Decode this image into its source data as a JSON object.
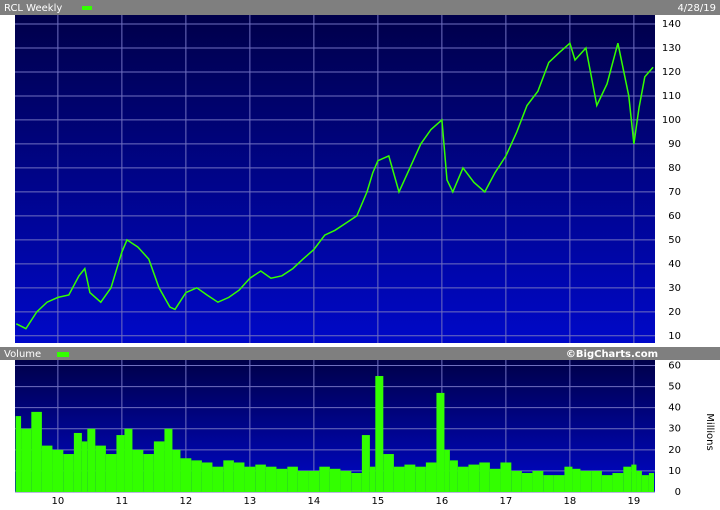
{
  "chart_data": [
    {
      "type": "line",
      "date": "4/28/19",
      "x": [
        2009.35,
        2009.5,
        2009.67,
        2009.83,
        2010.0,
        2010.17,
        2010.33,
        2010.42,
        2010.5,
        2010.67,
        2010.83,
        2011.0,
        2011.08,
        2011.25,
        2011.42,
        2011.58,
        2011.75,
        2011.83,
        2012.0,
        2012.17,
        2012.33,
        2012.5,
        2012.67,
        2012.83,
        2013.0,
        2013.17,
        2013.33,
        2013.5,
        2013.67,
        2013.83,
        2014.0,
        2014.17,
        2014.33,
        2014.5,
        2014.67,
        2014.83,
        2014.92,
        2015.0,
        2015.17,
        2015.33,
        2015.5,
        2015.67,
        2015.83,
        2016.0,
        2016.08,
        2016.17,
        2016.33,
        2016.5,
        2016.67,
        2016.83,
        2017.0,
        2017.17,
        2017.33,
        2017.5,
        2017.67,
        2017.83,
        2018.0,
        2018.08,
        2018.25,
        2018.42,
        2018.58,
        2018.75,
        2018.92,
        2019.0,
        2019.08,
        2019.17,
        2019.3
      ],
      "series": [
        {
          "name": "RCL Weekly",
          "color": "#33ff00",
          "values": [
            15,
            13,
            20,
            24,
            26,
            27,
            35,
            38,
            28,
            24,
            30,
            45,
            50,
            47,
            42,
            30,
            22,
            21,
            28,
            30,
            27,
            24,
            26,
            29,
            34,
            37,
            34,
            35,
            38,
            42,
            46,
            52,
            54,
            57,
            60,
            70,
            78,
            83,
            85,
            70,
            80,
            90,
            96,
            100,
            75,
            70,
            80,
            74,
            70,
            78,
            85,
            95,
            106,
            112,
            124,
            128,
            132,
            125,
            130,
            106,
            115,
            132,
            110,
            90,
            105,
            118,
            122
          ]
        }
      ],
      "xlim": [
        2009.33,
        2019.33
      ],
      "xticks": [
        2010,
        2011,
        2012,
        2013,
        2014,
        2015,
        2016,
        2017,
        2018,
        2019
      ],
      "ylim": [
        7,
        143.75
      ],
      "yticks": [
        10,
        20,
        30,
        40,
        50,
        60,
        70,
        80,
        90,
        100,
        110,
        120,
        130,
        140
      ],
      "grid": true
    },
    {
      "type": "bar",
      "credit": "©BigCharts.com",
      "ylabel": "Millions",
      "x": [
        2009.35,
        2009.5,
        2009.67,
        2009.83,
        2010.0,
        2010.17,
        2010.33,
        2010.42,
        2010.5,
        2010.67,
        2010.83,
        2011.0,
        2011.08,
        2011.25,
        2011.42,
        2011.58,
        2011.75,
        2011.83,
        2012.0,
        2012.17,
        2012.33,
        2012.5,
        2012.67,
        2012.83,
        2013.0,
        2013.17,
        2013.33,
        2013.5,
        2013.67,
        2013.83,
        2014.0,
        2014.17,
        2014.33,
        2014.5,
        2014.67,
        2014.83,
        2014.92,
        2015.0,
        2015.17,
        2015.33,
        2015.5,
        2015.67,
        2015.83,
        2016.0,
        2016.08,
        2016.17,
        2016.33,
        2016.5,
        2016.67,
        2016.83,
        2017.0,
        2017.17,
        2017.33,
        2017.5,
        2017.67,
        2017.83,
        2018.0,
        2018.08,
        2018.25,
        2018.42,
        2018.58,
        2018.75,
        2018.92,
        2019.0,
        2019.08,
        2019.17,
        2019.3
      ],
      "series": [
        {
          "name": "Volume",
          "color": "#33ff00",
          "values": [
            36,
            30,
            38,
            22,
            20,
            18,
            28,
            24,
            30,
            22,
            18,
            27,
            30,
            20,
            18,
            24,
            30,
            20,
            16,
            15,
            14,
            12,
            15,
            14,
            12,
            13,
            12,
            11,
            12,
            10,
            10,
            12,
            11,
            10,
            9,
            27,
            12,
            55,
            18,
            12,
            13,
            12,
            14,
            47,
            20,
            15,
            12,
            13,
            14,
            11,
            14,
            10,
            9,
            10,
            8,
            8,
            12,
            11,
            10,
            10,
            8,
            9,
            12,
            13,
            10,
            8,
            9
          ]
        }
      ],
      "xlim": [
        2009.33,
        2019.33
      ],
      "xticks": [
        {
          "value": 2010,
          "label": "10"
        },
        {
          "value": 2011,
          "label": "11"
        },
        {
          "value": 2012,
          "label": "12"
        },
        {
          "value": 2013,
          "label": "13"
        },
        {
          "value": 2014,
          "label": "14"
        },
        {
          "value": 2015,
          "label": "15"
        },
        {
          "value": 2016,
          "label": "16"
        },
        {
          "value": 2017,
          "label": "17"
        },
        {
          "value": 2018,
          "label": "18"
        },
        {
          "value": 2019,
          "label": "19"
        }
      ],
      "ylim": [
        0,
        62.6
      ],
      "yticks": [
        0,
        10,
        20,
        30,
        40,
        50,
        60
      ],
      "grid": true
    }
  ]
}
